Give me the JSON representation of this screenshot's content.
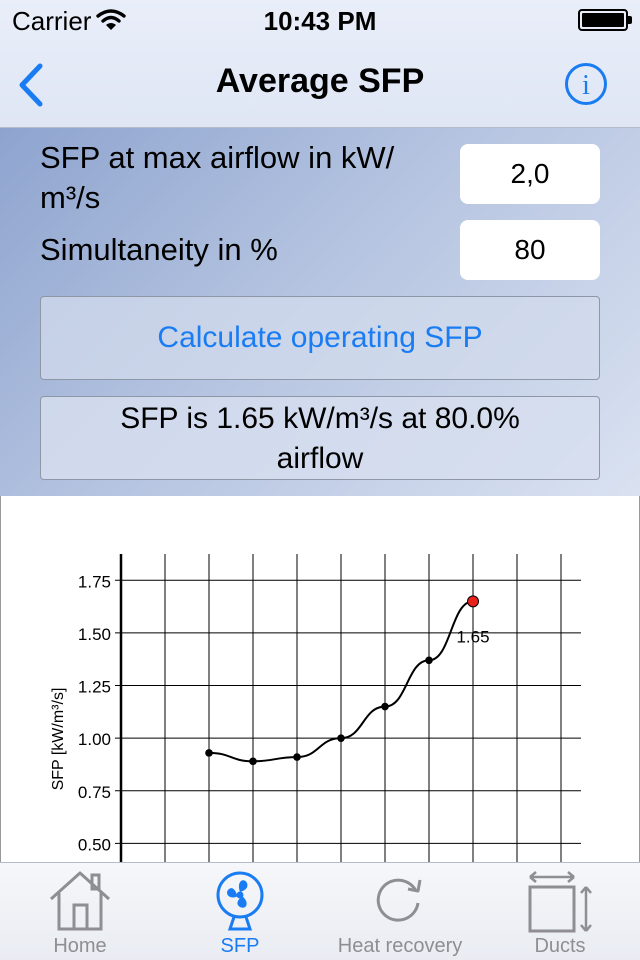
{
  "status_bar": {
    "carrier": "Carrier",
    "time": "10:43 PM"
  },
  "nav": {
    "title": "Average SFP",
    "back_icon": "chevron-left-icon",
    "info_icon": "info-circle-icon"
  },
  "form": {
    "sfp_label": "SFP at max airflow in kW/ m³/s",
    "sfp_value": "2,0",
    "simultaneity_label": "Simultaneity in %",
    "simultaneity_value": "80",
    "calculate_label": "Calculate operating SFP",
    "result_line1": "SFP is 1.65 kW/m³/s at 80.0%",
    "result_line2": "airflow"
  },
  "colors": {
    "accent": "#1a7cf2",
    "highlight_point": "#e8211d"
  },
  "chart_data": {
    "type": "line",
    "ylabel": "SFP [kW/m³/s]",
    "y_ticks": [
      "1.75",
      "1.50",
      "1.25",
      "1.00",
      "0.75",
      "0.50"
    ],
    "ylim": [
      0.25,
      1.875
    ],
    "grid": true,
    "series": [
      {
        "values": [
          0.93,
          0.89,
          0.91,
          1.0,
          1.15,
          1.37,
          1.65
        ]
      }
    ],
    "highlight": {
      "value": 1.65,
      "label": "1.65"
    }
  },
  "tabbar": {
    "tabs": [
      {
        "label": "Home",
        "icon": "house-icon",
        "active": false
      },
      {
        "label": "SFP",
        "icon": "fan-icon",
        "active": true
      },
      {
        "label": "Heat recovery",
        "icon": "refresh-icon",
        "active": false
      },
      {
        "label": "Ducts",
        "icon": "duct-dimensions-icon",
        "active": false
      }
    ]
  }
}
